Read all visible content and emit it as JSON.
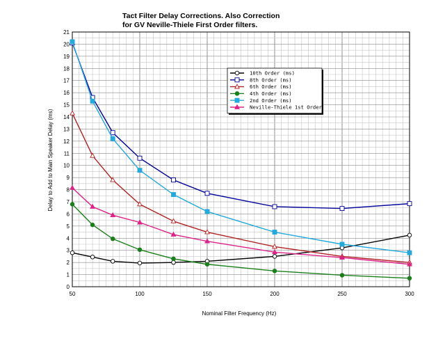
{
  "chart_data": {
    "type": "line",
    "title": [
      "Tact Filter Delay Corrections.  Also Correction",
      "for GV Neville-Thiele First Order filters."
    ],
    "xlabel": "Nominal Filter Frequency (Hz)",
    "ylabel": "Delay to Add to Main Speaker Delay (ms)",
    "xlim": [
      50,
      300
    ],
    "ylim": [
      0,
      21
    ],
    "xticks": [
      50,
      100,
      150,
      200,
      250,
      300
    ],
    "yticks": [
      0,
      1,
      2,
      3,
      4,
      5,
      6,
      7,
      8,
      9,
      10,
      11,
      12,
      13,
      14,
      15,
      16,
      17,
      18,
      19,
      20,
      21
    ],
    "x": [
      50,
      65,
      80,
      100,
      125,
      150,
      200,
      250,
      300
    ],
    "legend_position": "top-right",
    "series": [
      {
        "name": "10th Order (ms)",
        "color": "#000000",
        "marker": "circle-open",
        "values": [
          2.8,
          2.45,
          2.1,
          1.95,
          2.0,
          2.1,
          2.5,
          3.2,
          4.25
        ]
      },
      {
        "name": "8th Order (ms)",
        "color": "#000099",
        "marker": "square-open",
        "values": [
          20.1,
          15.6,
          12.7,
          10.6,
          8.8,
          7.7,
          6.6,
          6.45,
          6.85
        ]
      },
      {
        "name": "6th Order (ms)",
        "color": "#b22222",
        "marker": "triangle-open",
        "values": [
          14.3,
          10.8,
          8.8,
          6.8,
          5.4,
          4.5,
          3.3,
          2.5,
          2.0
        ]
      },
      {
        "name": "4th Order (ms)",
        "color": "#1a7f1a",
        "marker": "circle-filled",
        "values": [
          6.8,
          5.1,
          3.95,
          3.05,
          2.3,
          1.85,
          1.3,
          0.95,
          0.7
        ]
      },
      {
        "name": "2nd Order (ms)",
        "color": "#22aadd",
        "marker": "square-filled",
        "values": [
          20.2,
          15.3,
          12.2,
          9.6,
          7.6,
          6.2,
          4.5,
          3.5,
          2.8
        ]
      },
      {
        "name": "Neville-Thiele 1st Order",
        "color": "#dd2288",
        "marker": "triangle-filled",
        "values": [
          8.15,
          6.6,
          5.9,
          5.3,
          4.3,
          3.75,
          2.85,
          2.4,
          1.85
        ]
      }
    ]
  }
}
